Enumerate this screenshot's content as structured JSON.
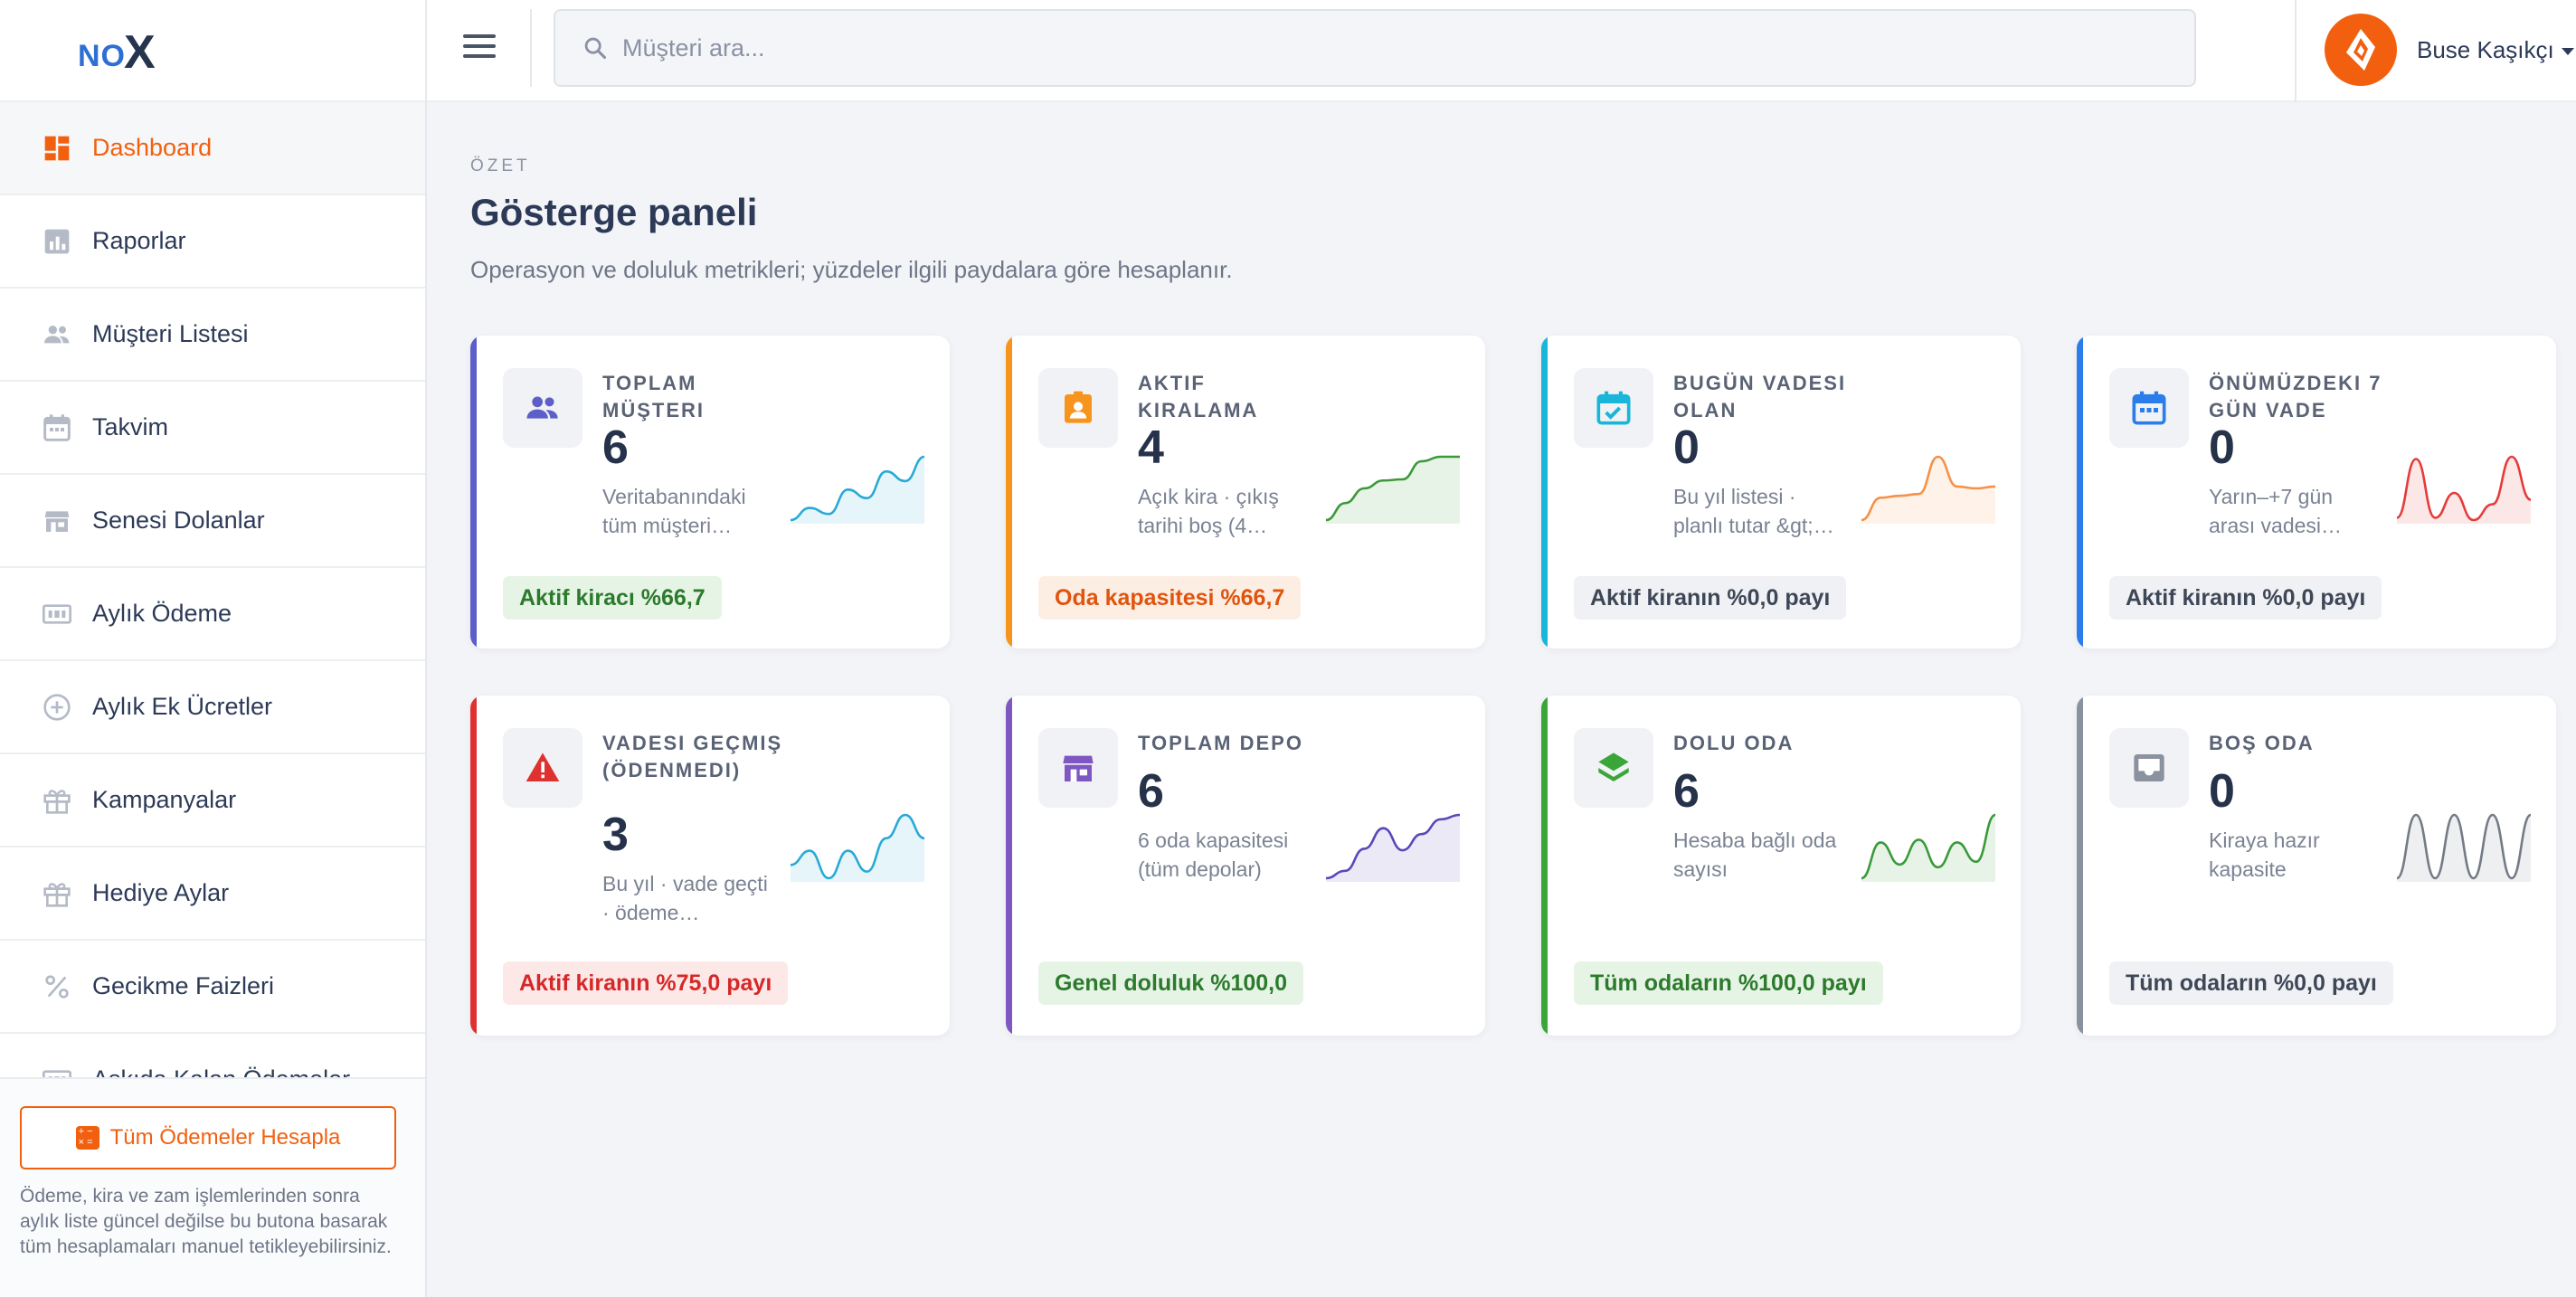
{
  "brand": {
    "logo_text": "NO",
    "logo_x": "X"
  },
  "sidebar": {
    "items": [
      {
        "label": "Dashboard",
        "icon": "dashboard-icon",
        "active": true
      },
      {
        "label": "Raporlar",
        "icon": "bar-chart-icon"
      },
      {
        "label": "Müşteri Listesi",
        "icon": "users-icon"
      },
      {
        "label": "Takvim",
        "icon": "calendar-icon"
      },
      {
        "label": "Senesi Dolanlar",
        "icon": "store-icon"
      },
      {
        "label": "Aylık Ödeme",
        "icon": "money-icon"
      },
      {
        "label": "Aylık Ek Ücretler",
        "icon": "plus-circle-icon"
      },
      {
        "label": "Kampanyalar",
        "icon": "gift-icon"
      },
      {
        "label": "Hediye Aylar",
        "icon": "gift-icon"
      },
      {
        "label": "Gecikme Faizleri",
        "icon": "percent-icon"
      },
      {
        "label": "Askıda Kalan Ödemeler",
        "icon": "money-icon"
      }
    ],
    "calc_button": "Tüm Ödemeler Hesapla",
    "help_text": "Ödeme, kira ve zam işlemlerinden sonra aylık liste güncel değilse bu butona basarak tüm hesaplamaları manuel tetikleyebilirsiniz."
  },
  "topbar": {
    "search_placeholder": "Müşteri ara...",
    "user_name": "Buse Kaşıkçı"
  },
  "page": {
    "eyebrow": "ÖZET",
    "title": "Gösterge paneli",
    "subtitle": "Operasyon ve doluluk metrikleri; yüzdeler ilgili paydalara göre hesaplanır."
  },
  "cards": [
    {
      "label": "TOPLAM MÜŞTERI",
      "value": "6",
      "desc": "Veritabanındaki tüm müşteri…",
      "badge": "Aktif kiracı %66,7",
      "badge_style": "green",
      "accent": "#5b5fc7",
      "icon": "users-icon",
      "spark_color": "#29a9d6",
      "spark": [
        30,
        40,
        35,
        55,
        48,
        70,
        62,
        82
      ]
    },
    {
      "label": "AKTIF KIRALAMA",
      "value": "4",
      "desc": "Açık kira · çıkış tarihi boş (4…",
      "badge": "Oda kapasitesi %66,7",
      "badge_style": "orange",
      "accent": "#f7941d",
      "icon": "id-badge-icon",
      "spark_color": "#3a9a3a",
      "spark": [
        20,
        35,
        48,
        55,
        56,
        72,
        76,
        76
      ]
    },
    {
      "label": "BUGÜN VADESI OLAN",
      "value": "0",
      "desc": "Bu yıl listesi · planlı tutar &gt;…",
      "badge": "Aktif kiranın %0,0 payı",
      "badge_style": "gray",
      "accent": "#1ab6d9",
      "icon": "calendar-check-icon",
      "spark_color": "#f5914a",
      "spark": [
        22,
        34,
        35,
        36,
        56,
        40,
        39,
        40
      ]
    },
    {
      "label": "ÖNÜMÜZDEKI 7 GÜN VADE",
      "value": "0",
      "desc": "Yarın–+7 gün arası vadesi…",
      "badge": "Aktif kiranın %0,0 payı",
      "badge_style": "gray",
      "accent": "#2b7de9",
      "icon": "calendar-icon",
      "spark_color": "#e53b3b",
      "spark": [
        30,
        82,
        30,
        52,
        28,
        42,
        84,
        46
      ]
    },
    {
      "label": "VADESI GEÇMIŞ (ÖDENMEDI)",
      "value": "3",
      "desc": "Bu yıl · vade geçti · ödeme…",
      "badge": "Aktif kiranın %75,0 payı",
      "badge_style": "red",
      "accent": "#e03131",
      "icon": "warning-icon",
      "spark_color": "#29a9d6",
      "spark": [
        28,
        45,
        12,
        45,
        20,
        60,
        88,
        60
      ]
    },
    {
      "label": "TOPLAM DEPO",
      "value": "6",
      "desc": "6 oda kapasitesi (tüm depolar)",
      "badge": "Genel doluluk %100,0",
      "badge_style": "green",
      "accent": "#7e57c2",
      "icon": "store-icon",
      "spark_color": "#5a47b8",
      "spark": [
        0,
        10,
        40,
        68,
        38,
        60,
        80,
        86
      ]
    },
    {
      "label": "DOLU ODA",
      "value": "6",
      "desc": "Hesaba bağlı oda sayısı",
      "badge": "Tüm odaların %100,0 payı",
      "badge_style": "green",
      "accent": "#3aa63a",
      "icon": "layers-icon",
      "spark_color": "#3a9a3a",
      "spark": [
        40,
        66,
        50,
        68,
        48,
        66,
        52,
        86
      ]
    },
    {
      "label": "BOŞ ODA",
      "value": "0",
      "desc": "Kiraya hazır kapasite",
      "badge": "Tüm odaların %0,0 payı",
      "badge_style": "gray",
      "accent": "#8a92a0",
      "icon": "inbox-icon",
      "spark_color": "#757b86",
      "spark": [
        0,
        100,
        0,
        100,
        0,
        100,
        0,
        100
      ]
    }
  ]
}
